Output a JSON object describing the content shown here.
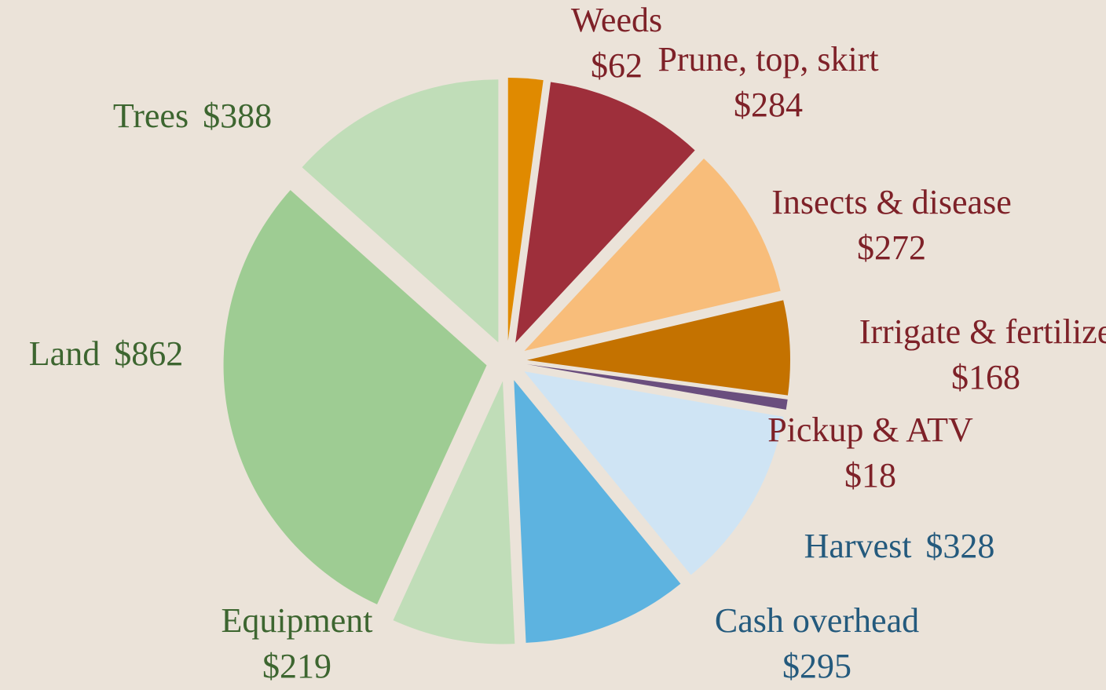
{
  "chart_data": {
    "type": "pie",
    "categories": [
      "Weeds",
      "Prune, top, skirt",
      "Insects & disease",
      "Irrigate & fertilize",
      "Pickup & ATV",
      "Harvest",
      "Cash overhead",
      "Equipment",
      "Land",
      "Trees"
    ],
    "values": [
      62,
      284,
      272,
      168,
      18,
      328,
      295,
      219,
      862,
      388
    ],
    "value_labels": [
      "$62",
      "$284",
      "$272",
      "$168",
      "$18",
      "$328",
      "$295",
      "$219",
      "$862",
      "$388"
    ],
    "colors": [
      "#e08a00",
      "#9e2f3b",
      "#f8bd7a",
      "#c47200",
      "#6a4e7e",
      "#cfe4f4",
      "#5db3e0",
      "#c0ddb8",
      "#9ecc93",
      "#c0ddb8"
    ],
    "label_colors": [
      "#7e2128",
      "#7e2128",
      "#7e2128",
      "#7e2128",
      "#7e2128",
      "#245a7d",
      "#245a7d",
      "#3d6630",
      "#3d6630",
      "#3d6630"
    ]
  }
}
